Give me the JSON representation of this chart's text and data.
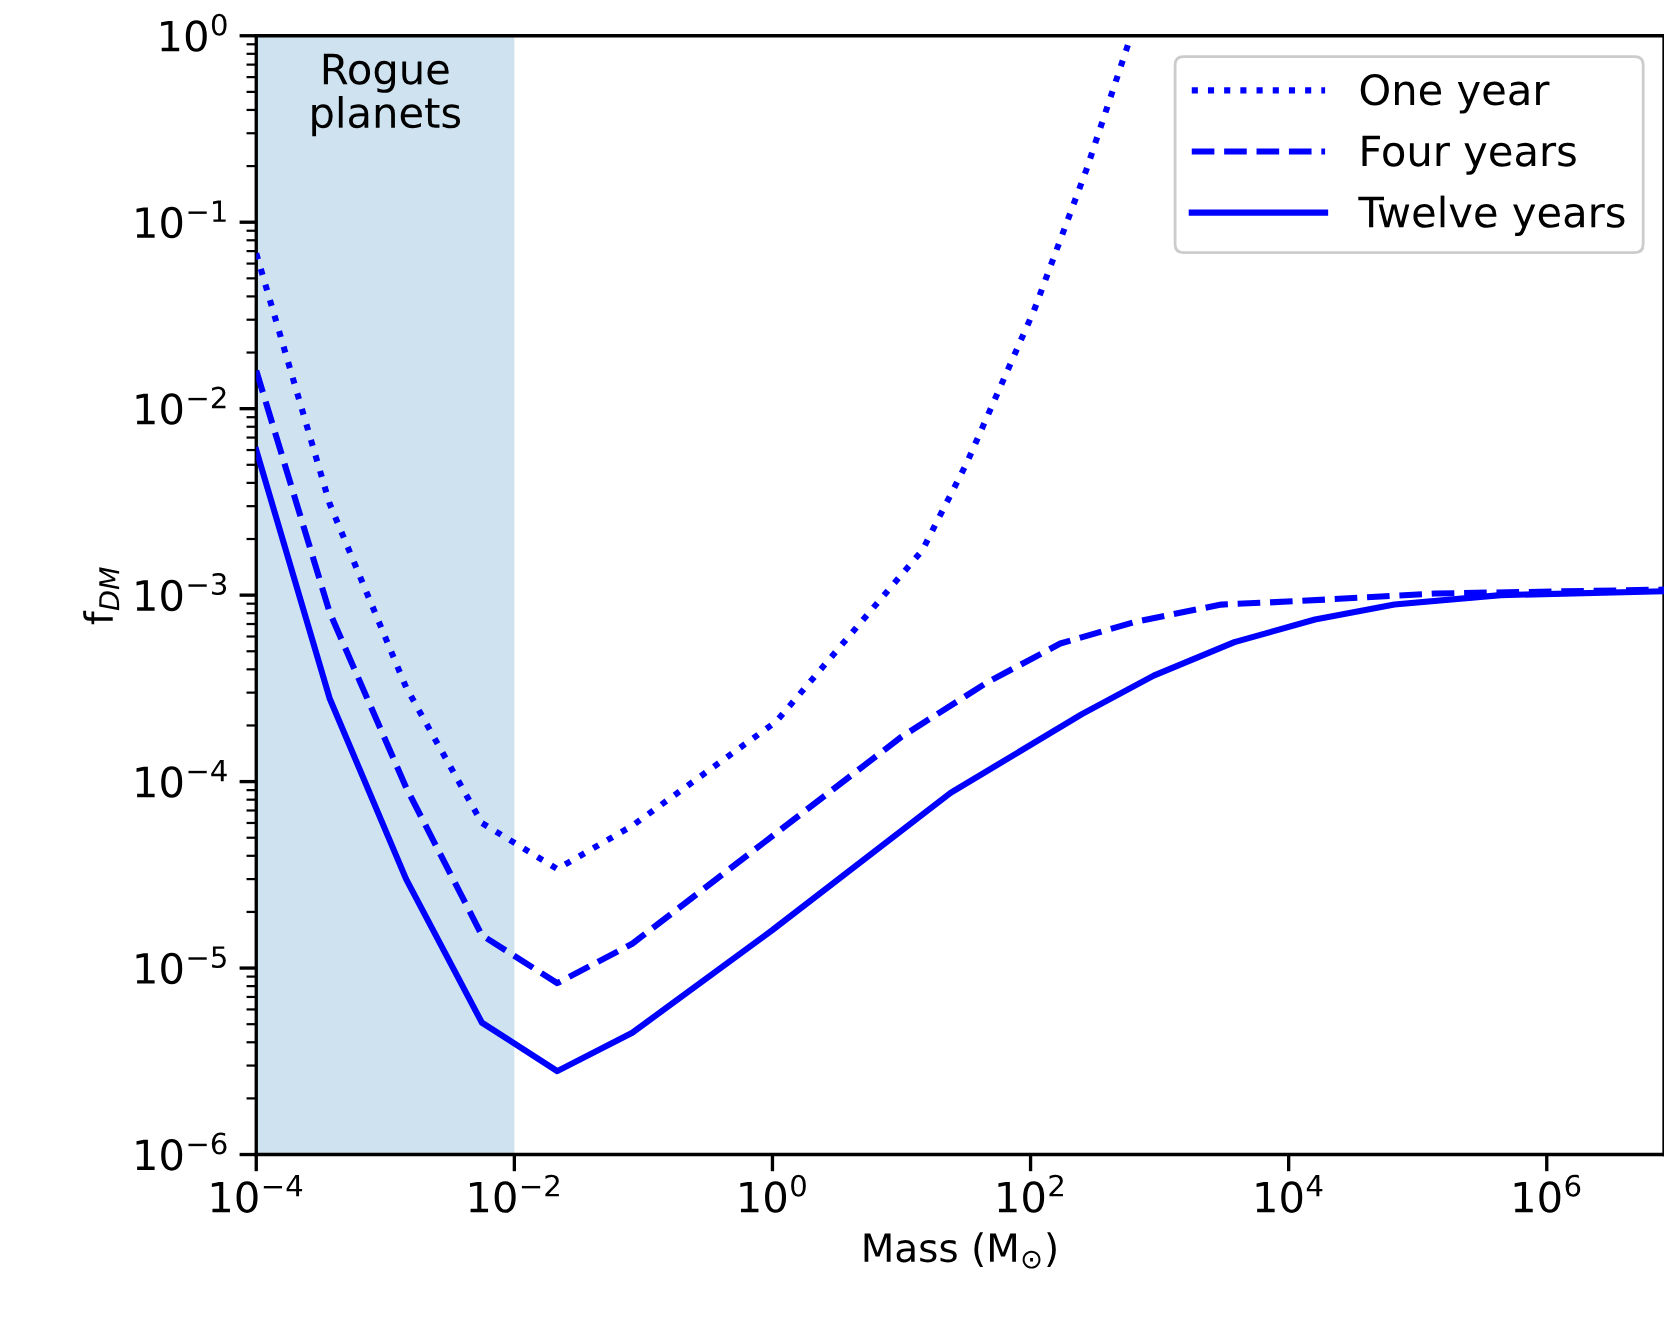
{
  "chart_data": {
    "type": "line",
    "xlabel": "Mass (M$_{⊙}$)",
    "ylabel": "f$_{DM}$",
    "log": "xy",
    "legend": "top right",
    "grid": false,
    "xlim": [
      0.0001,
      8100000.0
    ],
    "ylim": [
      1e-06,
      1
    ],
    "xticks": [
      {
        "value": 0.0001,
        "label": "10$^{−4}$"
      },
      {
        "value": 0.01,
        "label": "10$^{−2}$"
      },
      {
        "value": 1,
        "label": "10$^{0}$"
      },
      {
        "value": 100.0,
        "label": "10$^{2}$"
      },
      {
        "value": 10000.0,
        "label": "10$^{4}$"
      },
      {
        "value": 1000000.0,
        "label": "10$^{6}$"
      }
    ],
    "yticks": [
      {
        "value": 1e-06,
        "label": "10$^{−6}$"
      },
      {
        "value": 1e-05,
        "label": "10$^{−5}$"
      },
      {
        "value": 0.0001,
        "label": "10$^{−4}$"
      },
      {
        "value": 0.001,
        "label": "10$^{−3}$"
      },
      {
        "value": 0.01,
        "label": "10$^{−2}$"
      },
      {
        "value": 0.1,
        "label": "10$^{−1}$"
      },
      {
        "value": 1,
        "label": "10$^{0}$"
      }
    ],
    "bands": [
      {
        "axis": "x",
        "from": 0.0001,
        "to": 0.01,
        "label": "Rogue\nplanets",
        "color": "#cfe2ef"
      }
    ],
    "series": [
      {
        "name": "One year",
        "color": "#0000ff",
        "line_style": "dotted",
        "x": [
          0.0001,
          0.00037,
          0.00145,
          0.0056,
          0.0215,
          0.082,
          1.07,
          14.5,
          32,
          107,
          270,
          600
        ],
        "values": [
          0.068,
          0.0031,
          0.00032,
          6e-05,
          3.4e-05,
          5.8e-05,
          0.00021,
          0.00174,
          0.0051,
          0.034,
          0.19,
          1.0
        ]
      },
      {
        "name": "Four years",
        "color": "#0000ff",
        "line_style": "dashed",
        "x": [
          0.0001,
          0.00037,
          0.00145,
          0.0056,
          0.0215,
          0.082,
          10,
          46,
          170,
          650,
          3000,
          12000,
          135000,
          8100000.0
        ],
        "values": [
          0.016,
          0.00081,
          9.3e-05,
          1.5e-05,
          8.3e-06,
          1.35e-05,
          0.000174,
          0.00034,
          0.00055,
          0.00072,
          0.00089,
          0.00093,
          0.00102,
          0.00107
        ]
      },
      {
        "name": "Twelve years",
        "color": "#0000ff",
        "line_style": "solid",
        "x": [
          0.0001,
          0.00037,
          0.00145,
          0.0056,
          0.0215,
          0.082,
          1.0,
          24,
          250,
          900,
          3800,
          16000,
          66000,
          440000,
          8100000.0
        ],
        "values": [
          0.006,
          0.00028,
          3e-05,
          5.1e-06,
          2.8e-06,
          4.5e-06,
          1.6e-05,
          8.7e-05,
          0.00023,
          0.00037,
          0.00056,
          0.00074,
          0.00089,
          0.001,
          0.00105
        ]
      }
    ]
  }
}
